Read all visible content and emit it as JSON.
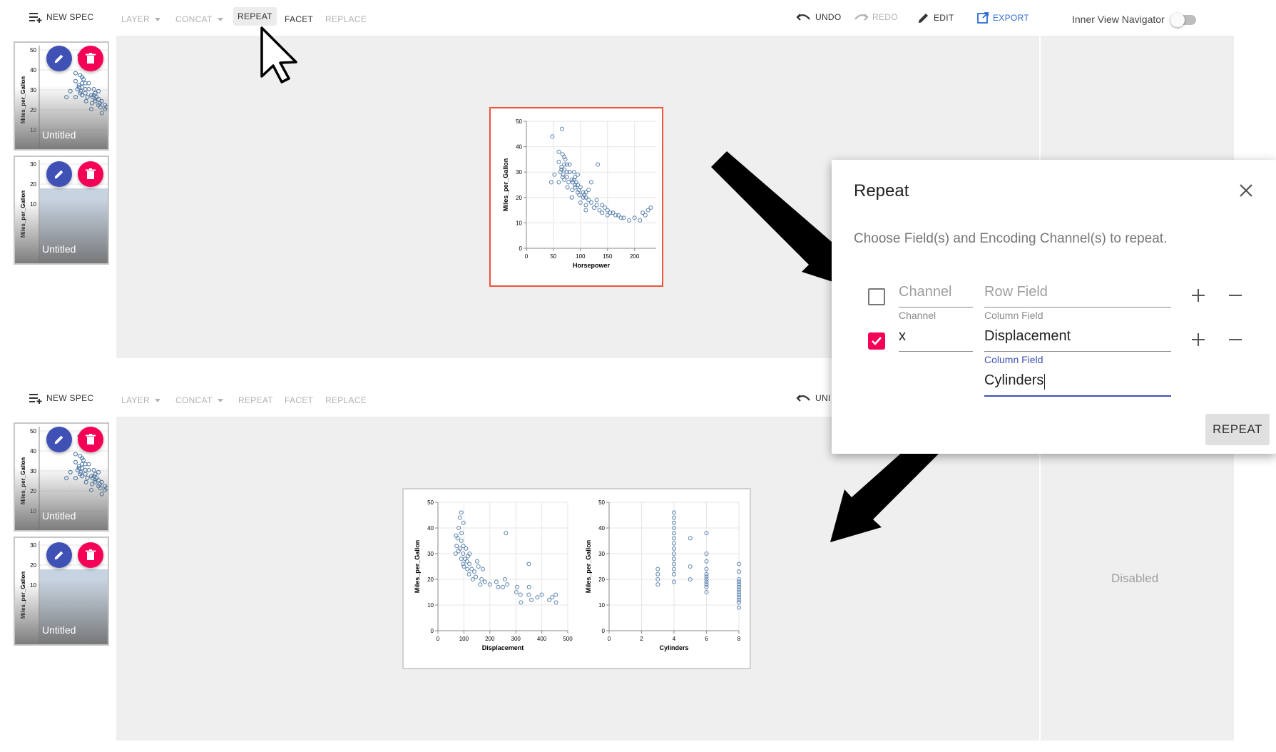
{
  "toolbar_top": {
    "new_spec": "NEW SPEC",
    "layer": "LAYER",
    "concat": "CONCAT",
    "repeat": "REPEAT",
    "facet": "FACET",
    "replace": "REPLACE",
    "undo": "UNDO",
    "redo": "REDO",
    "edit": "EDIT",
    "export": "EXPORT",
    "inner_view_navigator": "Inner View Navigator"
  },
  "toolbar_bottom": {
    "new_spec": "NEW SPEC",
    "layer": "LAYER",
    "concat": "CONCAT",
    "repeat": "REPEAT",
    "facet": "FACET",
    "replace": "REPLACE",
    "undo_partial": "UNI"
  },
  "thumbnails": [
    {
      "label": "Untitled",
      "ylabel": "Miles_per_Gallon",
      "ticks": [
        "50",
        "40",
        "30",
        "20",
        "10"
      ]
    },
    {
      "label": "Untitled",
      "ylabel": "Miles_per_Gallon",
      "ticks": [
        "30",
        "20",
        "10"
      ]
    }
  ],
  "dialog": {
    "title": "Repeat",
    "description": "Choose Field(s) and Encoding Channel(s) to repeat.",
    "row1": {
      "channel_placeholder": "Channel",
      "channel_label": "Channel",
      "field_placeholder": "Row Field",
      "field_label": "Column Field",
      "checked": false
    },
    "row2": {
      "channel_value": "x",
      "field_value": "Displacement",
      "field_label": "Column Field",
      "field2_value": "Cylinders",
      "checked": true
    },
    "repeat_button": "REPEAT"
  },
  "side_panel": {
    "disabled_text": "Disabled"
  },
  "colors": {
    "accent": "#2e6cd1",
    "pink": "#f50057",
    "indigo": "#3f51b5",
    "selection": "#f0533a",
    "point": "#4c78a8"
  },
  "chart_data": [
    {
      "type": "scatter",
      "xlabel": "Horsepower",
      "ylabel": "Miles_per_Gallon",
      "xticks": [
        0,
        50,
        100,
        150,
        200
      ],
      "yticks": [
        0,
        10,
        20,
        30,
        40,
        50
      ],
      "xlim": [
        0,
        240
      ],
      "ylim": [
        0,
        50
      ],
      "points": [
        [
          46,
          26
        ],
        [
          48,
          44
        ],
        [
          52,
          29
        ],
        [
          60,
          26
        ],
        [
          60,
          34
        ],
        [
          60,
          38
        ],
        [
          63,
          30
        ],
        [
          65,
          31
        ],
        [
          65,
          32
        ],
        [
          67,
          28
        ],
        [
          67,
          37
        ],
        [
          68,
          29
        ],
        [
          70,
          27
        ],
        [
          70,
          31
        ],
        [
          70,
          33
        ],
        [
          70,
          36
        ],
        [
          72,
          35
        ],
        [
          75,
          28
        ],
        [
          75,
          30
        ],
        [
          75,
          33
        ],
        [
          76,
          24
        ],
        [
          78,
          26
        ],
        [
          80,
          30
        ],
        [
          80,
          33
        ],
        [
          84,
          27
        ],
        [
          85,
          23
        ],
        [
          86,
          26
        ],
        [
          88,
          27
        ],
        [
          88,
          30
        ],
        [
          90,
          24
        ],
        [
          90,
          25
        ],
        [
          90,
          28
        ],
        [
          92,
          26
        ],
        [
          95,
          22
        ],
        [
          95,
          25
        ],
        [
          95,
          29
        ],
        [
          97,
          23
        ],
        [
          98,
          21
        ],
        [
          100,
          18
        ],
        [
          100,
          24
        ],
        [
          105,
          20
        ],
        [
          105,
          22
        ],
        [
          107,
          21
        ],
        [
          110,
          17
        ],
        [
          110,
          20
        ],
        [
          110,
          22
        ],
        [
          115,
          19
        ],
        [
          115,
          23
        ],
        [
          120,
          18
        ],
        [
          120,
          26
        ],
        [
          125,
          16
        ],
        [
          130,
          17
        ],
        [
          130,
          19
        ],
        [
          135,
          15
        ],
        [
          140,
          14
        ],
        [
          140,
          17
        ],
        [
          145,
          16
        ],
        [
          150,
          13
        ],
        [
          150,
          15
        ],
        [
          155,
          14
        ],
        [
          160,
          14
        ],
        [
          165,
          13
        ],
        [
          170,
          13
        ],
        [
          175,
          12
        ],
        [
          180,
          12
        ],
        [
          190,
          11
        ],
        [
          200,
          12
        ],
        [
          210,
          11
        ],
        [
          215,
          14
        ],
        [
          220,
          13
        ],
        [
          225,
          15
        ],
        [
          230,
          16
        ],
        [
          132,
          33
        ],
        [
          66,
          47
        ],
        [
          84,
          20
        ],
        [
          110,
          15
        ]
      ]
    },
    {
      "type": "scatter",
      "xlabel": "Displacement",
      "ylabel": "Miles_per_Gallon",
      "xticks": [
        0,
        100,
        200,
        300,
        400,
        500
      ],
      "yticks": [
        0,
        10,
        20,
        30,
        40,
        50
      ],
      "xlim": [
        0,
        500
      ],
      "ylim": [
        0,
        50
      ],
      "points": [
        [
          68,
          30
        ],
        [
          70,
          37
        ],
        [
          72,
          33
        ],
        [
          76,
          36
        ],
        [
          79,
          31
        ],
        [
          80,
          40
        ],
        [
          85,
          44
        ],
        [
          86,
          32
        ],
        [
          90,
          28
        ],
        [
          90,
          35
        ],
        [
          91,
          38
        ],
        [
          97,
          26
        ],
        [
          97,
          30
        ],
        [
          98,
          33
        ],
        [
          100,
          25
        ],
        [
          105,
          28
        ],
        [
          108,
          32
        ],
        [
          112,
          27
        ],
        [
          113,
          24
        ],
        [
          116,
          29
        ],
        [
          120,
          22
        ],
        [
          121,
          26
        ],
        [
          122,
          30
        ],
        [
          130,
          24
        ],
        [
          134,
          20
        ],
        [
          140,
          23
        ],
        [
          146,
          21
        ],
        [
          151,
          27
        ],
        [
          156,
          25
        ],
        [
          163,
          18
        ],
        [
          168,
          20
        ],
        [
          173,
          24
        ],
        [
          181,
          19
        ],
        [
          200,
          18
        ],
        [
          225,
          19
        ],
        [
          232,
          17
        ],
        [
          250,
          17
        ],
        [
          258,
          20
        ],
        [
          262,
          38
        ],
        [
          267,
          18
        ],
        [
          302,
          15
        ],
        [
          305,
          17
        ],
        [
          318,
          14
        ],
        [
          320,
          11
        ],
        [
          350,
          14
        ],
        [
          351,
          17
        ],
        [
          360,
          12
        ],
        [
          383,
          13
        ],
        [
          400,
          14
        ],
        [
          429,
          12
        ],
        [
          440,
          13
        ],
        [
          454,
          14
        ],
        [
          455,
          11
        ],
        [
          90,
          46
        ],
        [
          98,
          42
        ],
        [
          350,
          26
        ]
      ]
    },
    {
      "type": "scatter",
      "xlabel": "Cylinders",
      "ylabel": "Miles_per_Gallon",
      "xticks": [
        0,
        2,
        4,
        6,
        8
      ],
      "yticks": [
        0,
        10,
        20,
        30,
        40,
        50
      ],
      "xlim": [
        0,
        8
      ],
      "ylim": [
        0,
        50
      ],
      "points": [
        [
          3,
          18
        ],
        [
          3,
          20
        ],
        [
          3,
          22
        ],
        [
          3,
          24
        ],
        [
          4,
          19
        ],
        [
          4,
          22
        ],
        [
          4,
          24
        ],
        [
          4,
          26
        ],
        [
          4,
          28
        ],
        [
          4,
          30
        ],
        [
          4,
          32
        ],
        [
          4,
          34
        ],
        [
          4,
          36
        ],
        [
          4,
          38
        ],
        [
          4,
          40
        ],
        [
          4,
          42
        ],
        [
          4,
          44
        ],
        [
          4,
          46
        ],
        [
          5,
          20
        ],
        [
          5,
          25
        ],
        [
          5,
          36
        ],
        [
          6,
          15
        ],
        [
          6,
          17
        ],
        [
          6,
          18
        ],
        [
          6,
          19
        ],
        [
          6,
          20
        ],
        [
          6,
          21
        ],
        [
          6,
          22
        ],
        [
          6,
          24
        ],
        [
          6,
          27
        ],
        [
          6,
          30
        ],
        [
          6,
          38
        ],
        [
          8,
          9
        ],
        [
          8,
          11
        ],
        [
          8,
          12
        ],
        [
          8,
          13
        ],
        [
          8,
          14
        ],
        [
          8,
          15
        ],
        [
          8,
          16
        ],
        [
          8,
          17
        ],
        [
          8,
          18
        ],
        [
          8,
          19
        ],
        [
          8,
          20
        ],
        [
          8,
          23
        ],
        [
          8,
          26
        ]
      ]
    }
  ]
}
